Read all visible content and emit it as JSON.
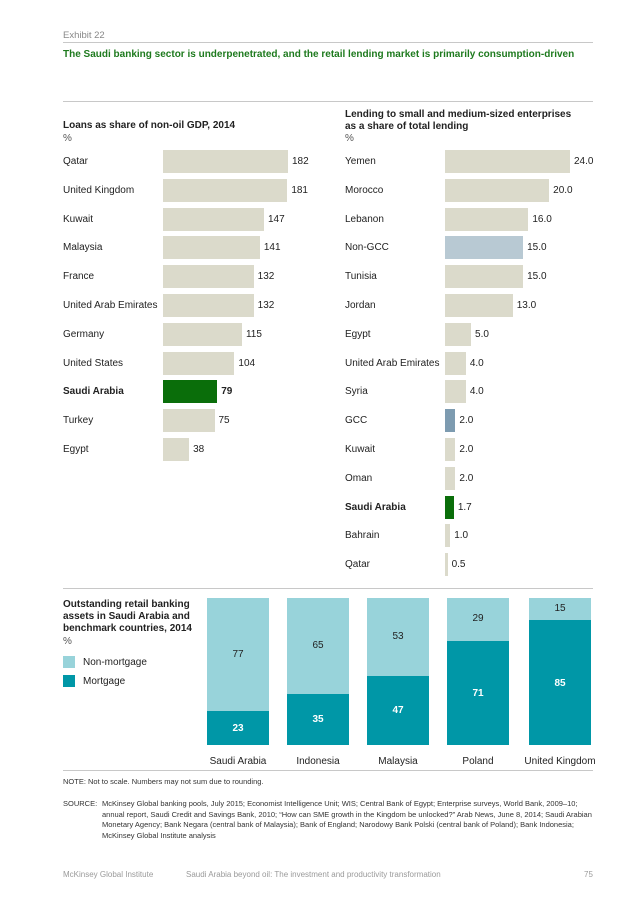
{
  "exhibit": "Exhibit 22",
  "headline": "The Saudi banking sector is underpenetrated, and the retail lending market is primarily consumption-driven",
  "colors": {
    "neutral_bar": "#dbdacb",
    "saudi_bar": "#0a6e0a",
    "nongcc_bar": "#b8c9d3",
    "gcc_bar": "#7d9bb0",
    "non_mortgage": "#98d3da",
    "mortgage": "#0097a7",
    "headline": "#1e7a1e"
  },
  "chart_data": [
    {
      "type": "bar",
      "orientation": "horizontal",
      "title": "Loans as share of non-oil GDP, 2014",
      "unit": "%",
      "categories": [
        "Qatar",
        "United Kingdom",
        "Kuwait",
        "Malaysia",
        "France",
        "United Arab Emirates",
        "Germany",
        "United States",
        "Saudi Arabia",
        "Turkey",
        "Egypt"
      ],
      "values": [
        182,
        181,
        147,
        141,
        132,
        132,
        115,
        104,
        79,
        75,
        38
      ],
      "value_labels": [
        "182",
        "181",
        "147",
        "141",
        "132",
        "132",
        "115",
        "104",
        "79",
        "75",
        "38"
      ],
      "highlight": [
        "Saudi Arabia"
      ]
    },
    {
      "type": "bar",
      "orientation": "horizontal",
      "title": "Lending to small and medium-sized enterprises as a share of total lending",
      "unit": "%",
      "categories": [
        "Yemen",
        "Morocco",
        "Lebanon",
        "Non-GCC",
        "Tunisia",
        "Jordan",
        "Egypt",
        "United Arab Emirates",
        "Syria",
        "GCC",
        "Kuwait",
        "Oman",
        "Saudi Arabia",
        "Bahrain",
        "Qatar"
      ],
      "values": [
        24.0,
        20.0,
        16.0,
        15.0,
        15.0,
        13.0,
        5.0,
        4.0,
        4.0,
        2.0,
        2.0,
        2.0,
        1.7,
        1.0,
        0.5
      ],
      "value_labels": [
        "24.0",
        "20.0",
        "16.0",
        "15.0",
        "15.0",
        "13.0",
        "5.0",
        "4.0",
        "4.0",
        "2.0",
        "2.0",
        "2.0",
        "1.7",
        "1.0",
        "0.5"
      ],
      "highlight": [
        "Saudi Arabia"
      ],
      "aggregates": [
        "Non-GCC",
        "GCC"
      ]
    },
    {
      "type": "bar",
      "stacked": true,
      "title": "Outstanding retail banking assets in Saudi Arabia and benchmark countries, 2014",
      "unit": "%",
      "categories": [
        "Saudi Arabia",
        "Indonesia",
        "Malaysia",
        "Poland",
        "United Kingdom"
      ],
      "series": [
        {
          "name": "Mortgage",
          "values": [
            23,
            35,
            47,
            71,
            85
          ]
        },
        {
          "name": "Non-mortgage",
          "values": [
            77,
            65,
            53,
            29,
            15
          ]
        }
      ],
      "legend": [
        "Non-mortgage",
        "Mortgage"
      ],
      "ylim": [
        0,
        100
      ]
    }
  ],
  "note": "NOTE: Not to scale. Numbers may not sum due to rounding.",
  "source_label": "SOURCE:",
  "source": "McKinsey Global banking pools, July 2015; Economist Intelligence Unit; WIS; Central Bank of Egypt; Enterprise surveys, World Bank, 2009–10; annual report, Saudi Credit and Savings Bank, 2010; “How can SME growth in the Kingdom be unlocked?” Arab News, June 8, 2014; Saudi Arabian Monetary Agency; Bank Negara (central bank of Malaysia); Bank of England; Narodowy Bank Polski (central bank of Poland); Bank Indonesia; McKinsey Global Institute analysis",
  "footer": {
    "publisher": "McKinsey Global Institute",
    "report": "Saudi Arabia beyond oil: The investment and productivity transformation",
    "page": "75"
  }
}
